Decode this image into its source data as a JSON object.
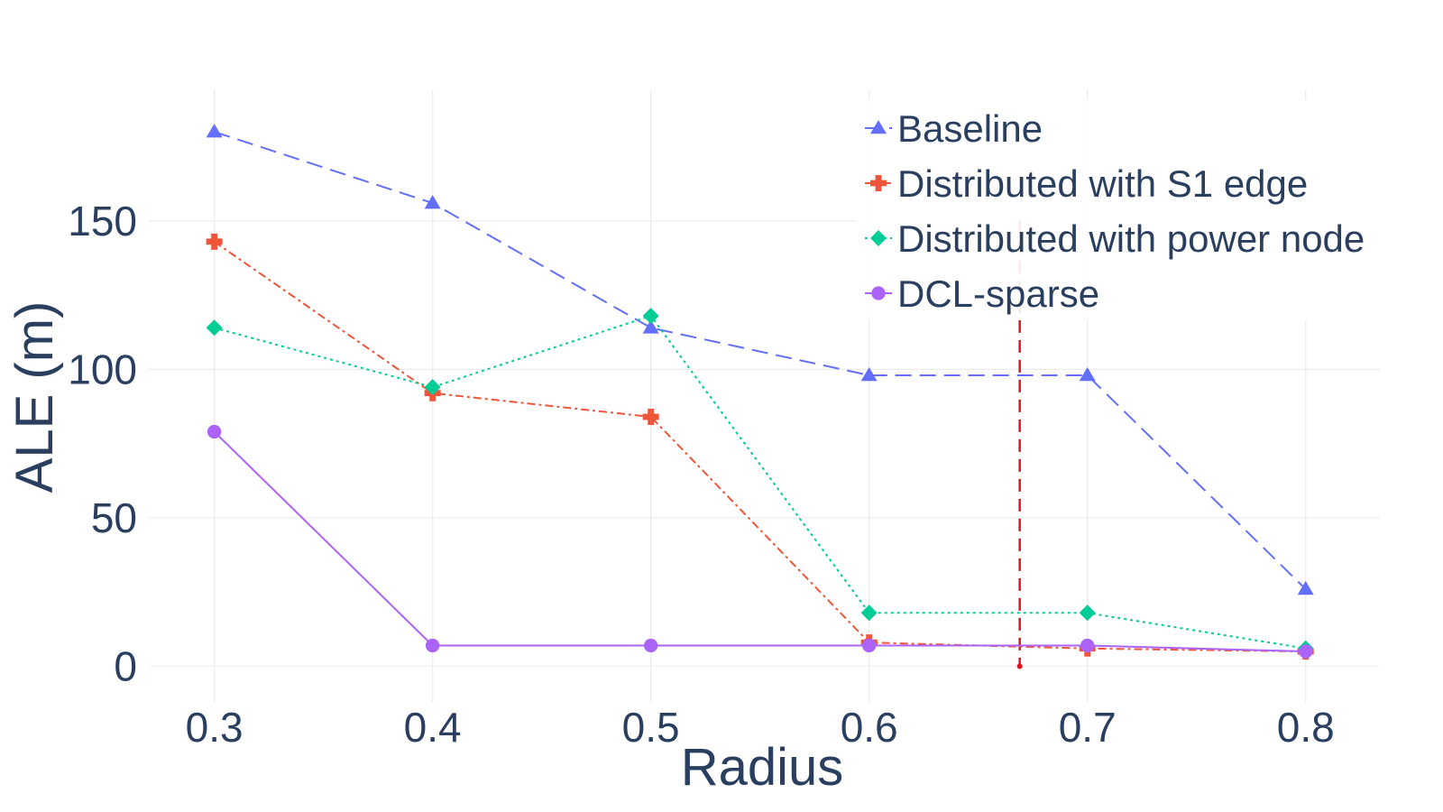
{
  "chart_data": {
    "type": "line",
    "title": "",
    "xlabel": "Radius",
    "ylabel": "ALE (m)",
    "x": [
      0.3,
      0.4,
      0.5,
      0.6,
      0.7,
      0.8
    ],
    "x_tick_labels": [
      "0.3",
      "0.4",
      "0.5",
      "0.6",
      "0.7",
      "0.8"
    ],
    "y_ticks": [
      0,
      50,
      100,
      150
    ],
    "y_tick_labels": [
      "0",
      "50",
      "100",
      "150"
    ],
    "xlim": [
      0.27,
      0.834
    ],
    "ylim": [
      -12,
      194
    ],
    "grid": true,
    "legend_position": "top-right",
    "series": [
      {
        "name": "Baseline",
        "color": "#636efa",
        "marker": "triangle-up",
        "dash": "long-dash",
        "values": [
          180,
          156,
          114,
          98,
          98,
          26
        ]
      },
      {
        "name": "Distributed with S1 edge",
        "color": "#ef553b",
        "marker": "cross",
        "dash": "dash-dot",
        "values": [
          143,
          92,
          84,
          8,
          6,
          5
        ]
      },
      {
        "name": "Distributed with power node",
        "color": "#00cc96",
        "marker": "diamond",
        "dash": "dot",
        "values": [
          114,
          94,
          118,
          18,
          18,
          6
        ]
      },
      {
        "name": "DCL-sparse",
        "color": "#ab63fa",
        "marker": "circle",
        "dash": "solid",
        "values": [
          79,
          7,
          7,
          7,
          7,
          5
        ]
      }
    ],
    "annotations": [
      {
        "type": "vertical-line",
        "x": 0.669,
        "y_from": 0,
        "y_to": 150,
        "color": "#e0141e",
        "dash": "dash"
      }
    ]
  }
}
